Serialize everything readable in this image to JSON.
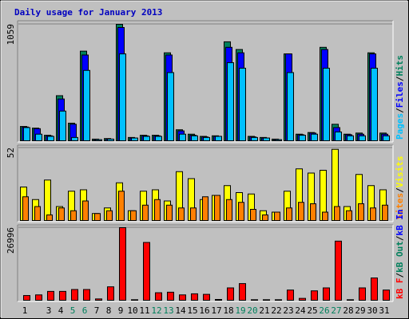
{
  "chart_data": [
    {
      "type": "bar",
      "title": "Daily usage for January 2013",
      "legend_separator": "/",
      "ylim": [
        0,
        1059
      ],
      "yticks": [
        1059
      ],
      "series": [
        {
          "name": "Hits",
          "color": "#00805c",
          "values": [
            130,
            115,
            50,
            410,
            160,
            815,
            15,
            20,
            1059,
            30,
            50,
            50,
            800,
            100,
            60,
            40,
            45,
            900,
            830,
            40,
            30,
            15,
            790,
            60,
            75,
            850,
            150,
            60,
            70,
            800,
            70
          ]
        },
        {
          "name": "Files",
          "color": "#0000ff",
          "values": [
            125,
            110,
            45,
            380,
            150,
            780,
            10,
            15,
            1030,
            25,
            45,
            45,
            780,
            90,
            50,
            35,
            40,
            850,
            800,
            35,
            25,
            10,
            790,
            55,
            70,
            830,
            120,
            55,
            60,
            790,
            60
          ]
        },
        {
          "name": "Pages",
          "color": "#00c0ff",
          "values": [
            120,
            60,
            40,
            270,
            30,
            640,
            10,
            15,
            790,
            25,
            40,
            40,
            620,
            60,
            45,
            30,
            40,
            710,
            660,
            30,
            25,
            10,
            620,
            50,
            60,
            660,
            80,
            45,
            45,
            660,
            45
          ]
        }
      ]
    },
    {
      "type": "bar",
      "legend_separator": "/",
      "ylim": [
        0,
        52
      ],
      "yticks": [
        52
      ],
      "series": [
        {
          "name": "Visits",
          "color": "#ffff00",
          "values": [
            24,
            15,
            29,
            10,
            21,
            22,
            5,
            9,
            27,
            7,
            21,
            22,
            14,
            35,
            30,
            15,
            18,
            25,
            20,
            19,
            7,
            6,
            21,
            37,
            34,
            36,
            51,
            10,
            33,
            25,
            22
          ]
        },
        {
          "name": "Sites",
          "color": "#ff8000",
          "values": [
            17,
            10,
            4,
            9,
            7,
            14,
            5,
            7,
            21,
            7,
            11,
            15,
            11,
            9,
            9,
            17,
            18,
            15,
            13,
            8,
            4,
            6,
            9,
            13,
            12,
            6,
            10,
            7,
            12,
            9,
            11
          ]
        }
      ]
    },
    {
      "type": "bar",
      "legend_separator": "/",
      "ylim": [
        0,
        26996
      ],
      "yticks": [
        26996
      ],
      "categories": [
        "1",
        null,
        "3",
        "4",
        "5",
        "6",
        "7",
        "8",
        "9",
        "10",
        "11",
        "12",
        "13",
        "14",
        "15",
        "16",
        "17",
        "18",
        "19",
        "20",
        "21",
        "22",
        "23",
        "24",
        "25",
        "26",
        "27",
        "28",
        "29",
        "30",
        "31"
      ],
      "x_label_colors": [
        "#000000",
        "#000000",
        "#000000",
        "#000000",
        "#00805c",
        "#00805c",
        "#000000",
        "#000000",
        "#000000",
        "#000000",
        "#000000",
        "#00805c",
        "#00805c",
        "#000000",
        "#000000",
        "#000000",
        "#000000",
        "#000000",
        "#00805c",
        "#00805c",
        "#000000",
        "#000000",
        "#000000",
        "#000000",
        "#000000",
        "#00805c",
        "#00805c",
        "#000000",
        "#000000",
        "#000000",
        "#000000"
      ],
      "series": [
        {
          "name": "kB In",
          "color": "#0000ff",
          "values": [
            0,
            0,
            0,
            0,
            0,
            0,
            0,
            0,
            0,
            0,
            0,
            0,
            0,
            0,
            0,
            0,
            0,
            0,
            0,
            0,
            0,
            0,
            0,
            0,
            0,
            0,
            0,
            0,
            0,
            0,
            0
          ]
        },
        {
          "name": "kB Out",
          "color": "#00805c",
          "values": [
            0,
            0,
            0,
            0,
            0,
            0,
            0,
            0,
            0,
            0,
            0,
            0,
            0,
            0,
            0,
            0,
            0,
            0,
            0,
            0,
            0,
            0,
            0,
            0,
            0,
            0,
            0,
            0,
            0,
            0,
            0
          ]
        },
        {
          "name": "kB F",
          "color": "#ff0000",
          "values": [
            1760,
            2000,
            3300,
            3300,
            4000,
            4000,
            500,
            5000,
            26996,
            200,
            21500,
            2800,
            3000,
            2000,
            2400,
            2200,
            300,
            4600,
            6200,
            200,
            200,
            200,
            3800,
            700,
            3500,
            4600,
            22000,
            200,
            4600,
            8300,
            3800
          ]
        }
      ]
    }
  ]
}
